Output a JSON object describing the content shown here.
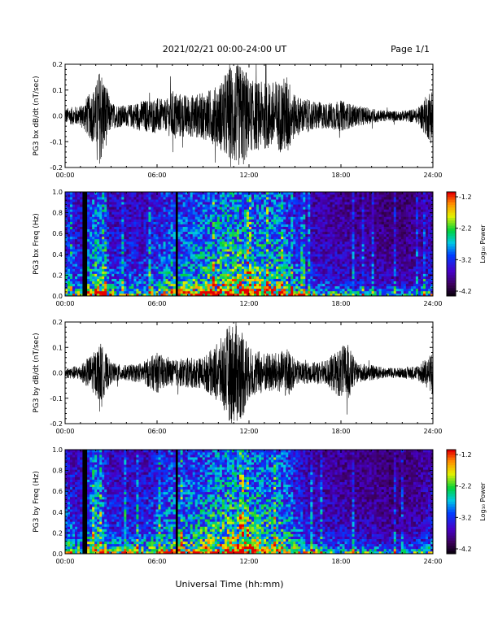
{
  "header": {
    "title": "2021/02/21  00:00-24:00 UT",
    "page": "Page 1/1"
  },
  "footer": {
    "xlabel": "Universal Time (hh:mm)"
  },
  "colorbar": {
    "label": "Log₁₀ Power",
    "ticks": [
      "-1.2",
      "-2.2",
      "-3.2",
      "-4.2"
    ]
  },
  "chart_data": [
    {
      "type": "line",
      "ylabel": "PG3 bx dB/dt (nT/sec)",
      "xlim": [
        0,
        24
      ],
      "ylim": [
        -0.2,
        0.2
      ],
      "x_ticks": [
        "00:00",
        "06:00",
        "12:00",
        "18:00",
        "24:00"
      ],
      "y_ticks": [
        "0.2",
        "0.1",
        "0.0",
        "-0.1",
        "-0.2"
      ],
      "series": [
        {
          "x": [
            0,
            1,
            2,
            2.3,
            3,
            4,
            5,
            6,
            6.6,
            7,
            8,
            9,
            10,
            10.8,
            11.2,
            11.7,
            12,
            13,
            14,
            14.5,
            15,
            16,
            17,
            18,
            19,
            20,
            21,
            22,
            23,
            23.8,
            24
          ],
          "amplitude": [
            0.03,
            0.04,
            0.12,
            0.2,
            0.05,
            0.04,
            0.06,
            0.07,
            0.06,
            0.1,
            0.08,
            0.09,
            0.12,
            0.2,
            0.2,
            0.2,
            0.14,
            0.13,
            0.14,
            0.16,
            0.08,
            0.06,
            0.05,
            0.06,
            0.04,
            0.03,
            0.02,
            0.02,
            0.03,
            0.1,
            0.12
          ]
        }
      ]
    },
    {
      "type": "heatmap",
      "ylabel": "PG3 bx Freq (Hz)",
      "xlim": [
        0,
        24
      ],
      "ylim": [
        0,
        1.0
      ],
      "zlim": [
        -4.2,
        -1.2
      ],
      "x_ticks": [
        "00:00",
        "06:00",
        "12:00",
        "18:00",
        "24:00"
      ],
      "y_ticks": [
        "1.0",
        "0.8",
        "0.6",
        "0.4",
        "0.2",
        "0.0"
      ],
      "activity_x": [
        0,
        1,
        2,
        3,
        4,
        5,
        6,
        7,
        8,
        9,
        10,
        11,
        12,
        13,
        14,
        15,
        16,
        17,
        18,
        19,
        20,
        21,
        22,
        23,
        24
      ],
      "activity": [
        0.6,
        0.5,
        0.8,
        0.5,
        0.5,
        0.5,
        0.6,
        0.7,
        0.7,
        0.75,
        0.85,
        0.9,
        0.85,
        0.8,
        0.8,
        0.6,
        0.45,
        0.4,
        0.4,
        0.35,
        0.35,
        0.3,
        0.3,
        0.35,
        0.45
      ],
      "dark_gaps_hours": [
        1.3,
        7.3
      ]
    },
    {
      "type": "line",
      "ylabel": "PG3 by dB/dt (nT/sec)",
      "xlim": [
        0,
        24
      ],
      "ylim": [
        -0.2,
        0.2
      ],
      "x_ticks": [
        "00:00",
        "06:00",
        "12:00",
        "18:00",
        "24:00"
      ],
      "y_ticks": [
        "0.2",
        "0.1",
        "0.0",
        "-0.1",
        "-0.2"
      ],
      "series": [
        {
          "x": [
            0,
            1,
            2,
            2.3,
            3,
            4,
            5,
            6,
            6.6,
            7,
            8,
            9,
            10,
            10.8,
            11.2,
            11.7,
            12,
            13,
            14,
            14.5,
            15,
            16,
            17,
            18,
            18.4,
            19,
            20,
            21,
            22,
            23,
            23.8,
            24
          ],
          "amplitude": [
            0.02,
            0.03,
            0.09,
            0.12,
            0.04,
            0.03,
            0.04,
            0.08,
            0.06,
            0.05,
            0.06,
            0.06,
            0.12,
            0.2,
            0.2,
            0.17,
            0.1,
            0.08,
            0.08,
            0.1,
            0.05,
            0.04,
            0.05,
            0.1,
            0.12,
            0.04,
            0.03,
            0.02,
            0.02,
            0.03,
            0.07,
            0.11
          ]
        }
      ]
    },
    {
      "type": "heatmap",
      "ylabel": "PG3 by Freq (Hz)",
      "xlim": [
        0,
        24
      ],
      "ylim": [
        0,
        1.0
      ],
      "zlim": [
        -4.2,
        -1.2
      ],
      "x_ticks": [
        "00:00",
        "06:00",
        "12:00",
        "18:00",
        "24:00"
      ],
      "y_ticks": [
        "1.0",
        "0.8",
        "0.6",
        "0.4",
        "0.2",
        "0.0"
      ],
      "activity_x": [
        0,
        1,
        2,
        3,
        4,
        5,
        6,
        7,
        8,
        9,
        10,
        11,
        12,
        13,
        14,
        15,
        16,
        17,
        18,
        19,
        20,
        21,
        22,
        23,
        24
      ],
      "activity": [
        0.6,
        0.5,
        0.8,
        0.5,
        0.5,
        0.5,
        0.6,
        0.7,
        0.7,
        0.75,
        0.85,
        0.9,
        0.85,
        0.8,
        0.8,
        0.6,
        0.45,
        0.4,
        0.4,
        0.35,
        0.35,
        0.3,
        0.3,
        0.35,
        0.45
      ],
      "dark_gaps_hours": [
        1.3,
        7.3
      ]
    }
  ]
}
